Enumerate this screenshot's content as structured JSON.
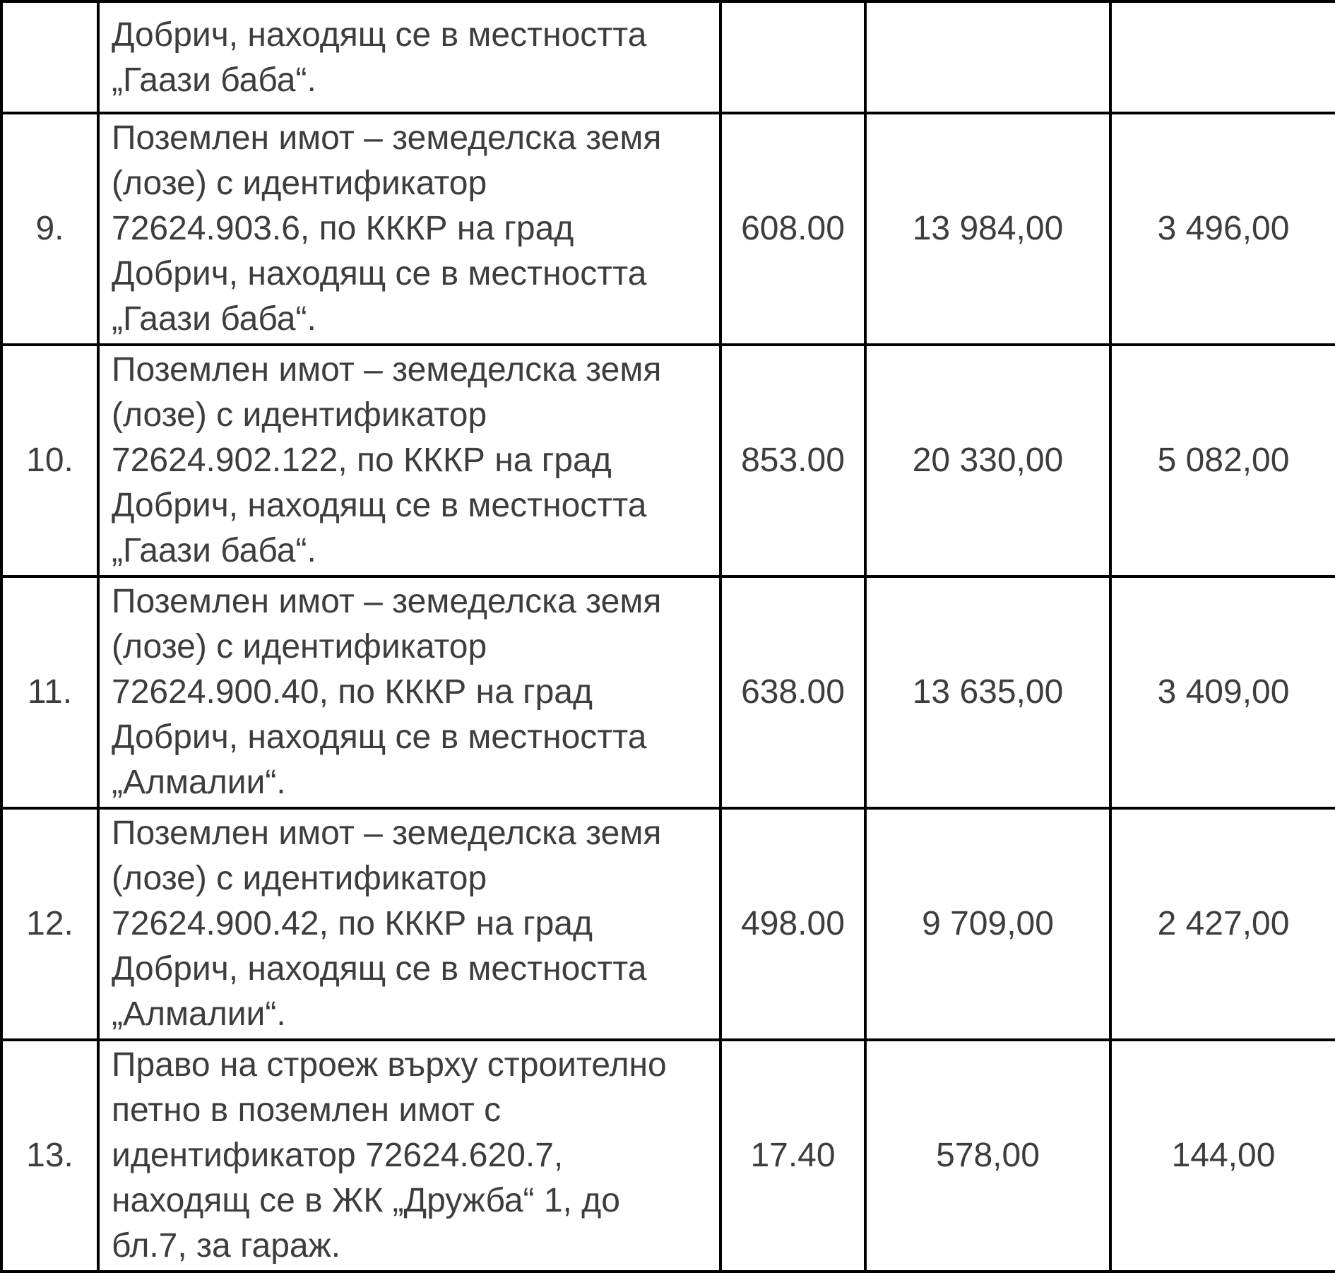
{
  "table": {
    "border_color": "#000000",
    "text_color": "#3d3d3d",
    "partial_row": {
      "no": "",
      "description_lines": [
        "Добрич, находящ се в местността",
        "„Гаази баба“."
      ],
      "col3": "",
      "col4": "",
      "col5": ""
    },
    "rows": [
      {
        "no": "9.",
        "description_lines": [
          "Поземлен имот – земеделска земя",
          "(лозе) с идентификатор",
          "72624.903.6, по КККР на град",
          "Добрич, находящ се в местността",
          "„Гаази баба“."
        ],
        "col3": "608.00",
        "col4": "13 984,00",
        "col5": "3 496,00"
      },
      {
        "no": "10.",
        "description_lines": [
          "Поземлен имот – земеделска земя",
          "(лозе) с идентификатор",
          "72624.902.122, по КККР на град",
          "Добрич, находящ се в местността",
          "„Гаази баба“."
        ],
        "col3": "853.00",
        "col4": "20 330,00",
        "col5": "5 082,00"
      },
      {
        "no": "11.",
        "description_lines": [
          "Поземлен имот – земеделска земя",
          "(лозе) с идентификатор",
          "72624.900.40, по КККР на град",
          "Добрич, находящ се в местността",
          "„Алмалии“."
        ],
        "col3": "638.00",
        "col4": "13 635,00",
        "col5": "3 409,00"
      },
      {
        "no": "12.",
        "description_lines": [
          "Поземлен имот – земеделска земя",
          "(лозе) с идентификатор",
          "72624.900.42, по КККР на град",
          "Добрич, находящ се в местността",
          "„Алмалии“."
        ],
        "col3": "498.00",
        "col4": "9 709,00",
        "col5": "2 427,00"
      },
      {
        "no": "13.",
        "description_lines": [
          "Право на строеж върху строително",
          "петно в поземлен имот с",
          "идентификатор 72624.620.7,",
          "находящ се в ЖК „Дружба“ 1, до",
          "бл.7, за гараж."
        ],
        "col3": "17.40",
        "col4": "578,00",
        "col5": "144,00"
      }
    ]
  }
}
